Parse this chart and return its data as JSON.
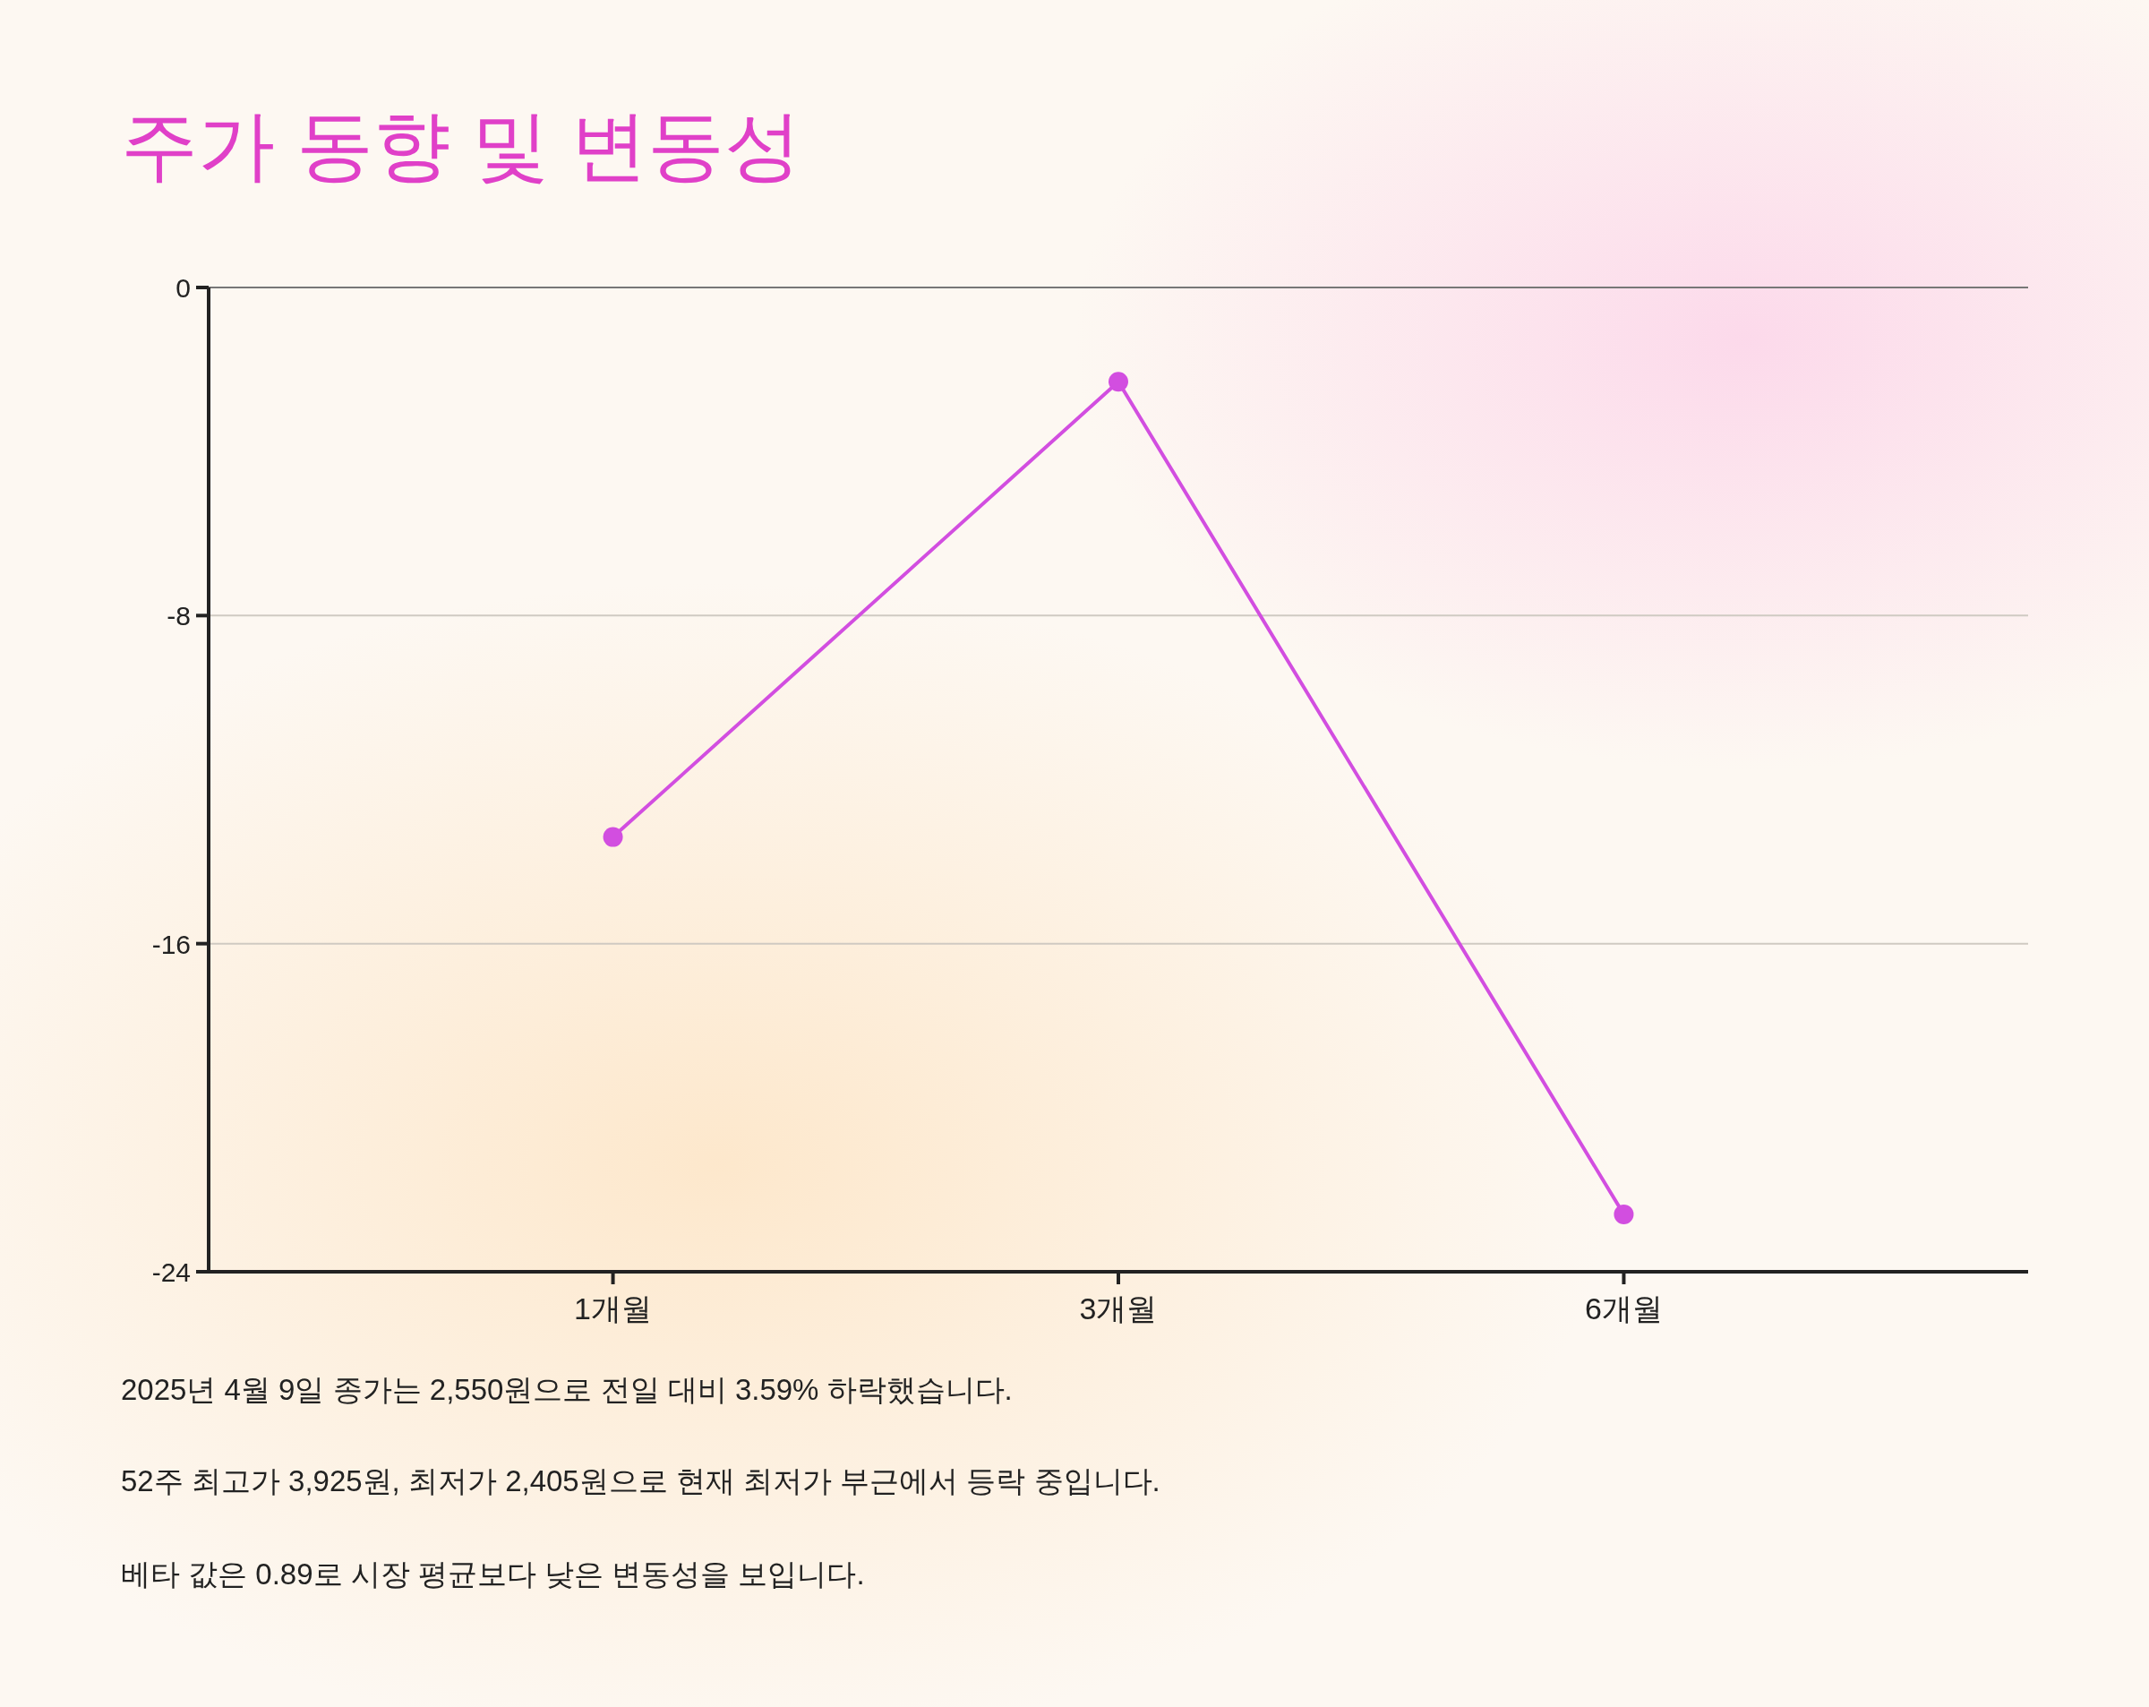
{
  "chart_data": {
    "type": "line",
    "title": "주가 동향 및 변동성",
    "categories": [
      "1개월",
      "3개월",
      "6개월"
    ],
    "series": [
      {
        "color": "#d24ee0",
        "values": [
          -13.4,
          -2.3,
          -22.6
        ]
      }
    ],
    "ylim": [
      -24,
      0
    ],
    "yticks": [
      0,
      -8,
      -16,
      -24
    ],
    "grid": "y",
    "marker": "circle",
    "line_style": "solid",
    "annotations": [
      "2025년 4월 9일 종가는 2,550원으로 전일 대비 3.59% 하락했습니다.",
      "52주 최고가 3,925원, 최저가 2,405원으로 현재 최저가 부근에서 등락 중입니다.",
      "베타 값은 0.89로 시장 평균보다 낮은 변동성을 보입니다."
    ]
  }
}
